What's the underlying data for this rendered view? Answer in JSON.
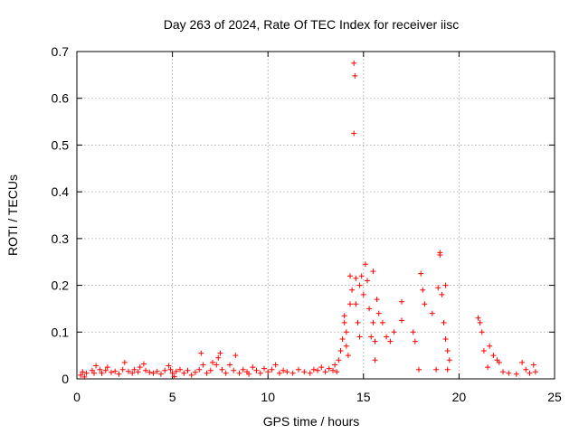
{
  "chart_data": {
    "type": "scatter",
    "title": "Day 263 of 2024, Rate Of TEC Index for receiver iisc",
    "xlabel": "GPS time / hours",
    "ylabel": "ROTI / TECUs",
    "xlim": [
      0,
      25
    ],
    "ylim": [
      0,
      0.7
    ],
    "xticks": [
      "0",
      "5",
      "10",
      "15",
      "20",
      "25"
    ],
    "yticks": [
      "0",
      "0.1",
      "0.2",
      "0.3",
      "0.4",
      "0.5",
      "0.6",
      "0.7"
    ],
    "grid": true,
    "legend": "none",
    "marker": "+",
    "series": [
      {
        "color": "#ff0000",
        "points": [
          [
            0.2,
            0.008
          ],
          [
            0.3,
            0.015
          ],
          [
            0.4,
            0.004
          ],
          [
            0.5,
            0.012
          ],
          [
            0.8,
            0.018
          ],
          [
            0.9,
            0.012
          ],
          [
            1.0,
            0.028
          ],
          [
            1.2,
            0.02
          ],
          [
            1.3,
            0.012
          ],
          [
            1.5,
            0.018
          ],
          [
            1.6,
            0.025
          ],
          [
            1.8,
            0.014
          ],
          [
            2.0,
            0.016
          ],
          [
            2.2,
            0.01
          ],
          [
            2.4,
            0.02
          ],
          [
            2.5,
            0.035
          ],
          [
            2.7,
            0.016
          ],
          [
            2.9,
            0.012
          ],
          [
            3.0,
            0.02
          ],
          [
            3.2,
            0.015
          ],
          [
            3.3,
            0.025
          ],
          [
            3.5,
            0.032
          ],
          [
            3.6,
            0.018
          ],
          [
            3.8,
            0.014
          ],
          [
            4.0,
            0.012
          ],
          [
            4.2,
            0.016
          ],
          [
            4.4,
            0.01
          ],
          [
            4.6,
            0.018
          ],
          [
            4.8,
            0.028
          ],
          [
            4.9,
            0.02
          ],
          [
            5.0,
            0.012
          ],
          [
            5.1,
            0.005
          ],
          [
            5.2,
            0.016
          ],
          [
            5.4,
            0.02
          ],
          [
            5.6,
            0.012
          ],
          [
            5.8,
            0.018
          ],
          [
            6.0,
            0.008
          ],
          [
            6.2,
            0.014
          ],
          [
            6.4,
            0.02
          ],
          [
            6.5,
            0.055
          ],
          [
            6.6,
            0.03
          ],
          [
            6.8,
            0.012
          ],
          [
            7.0,
            0.018
          ],
          [
            7.1,
            0.035
          ],
          [
            7.3,
            0.03
          ],
          [
            7.4,
            0.045
          ],
          [
            7.5,
            0.055
          ],
          [
            7.6,
            0.02
          ],
          [
            7.8,
            0.012
          ],
          [
            8.0,
            0.03
          ],
          [
            8.2,
            0.018
          ],
          [
            8.3,
            0.05
          ],
          [
            8.5,
            0.012
          ],
          [
            8.7,
            0.02
          ],
          [
            8.9,
            0.015
          ],
          [
            9.0,
            0.01
          ],
          [
            9.2,
            0.025
          ],
          [
            9.4,
            0.018
          ],
          [
            9.6,
            0.012
          ],
          [
            9.8,
            0.022
          ],
          [
            10.0,
            0.015
          ],
          [
            10.2,
            0.02
          ],
          [
            10.4,
            0.03
          ],
          [
            10.6,
            0.012
          ],
          [
            10.8,
            0.018
          ],
          [
            11.0,
            0.015
          ],
          [
            11.3,
            0.012
          ],
          [
            11.6,
            0.02
          ],
          [
            11.9,
            0.015
          ],
          [
            12.2,
            0.012
          ],
          [
            12.4,
            0.02
          ],
          [
            12.6,
            0.018
          ],
          [
            12.8,
            0.025
          ],
          [
            13.0,
            0.015
          ],
          [
            13.2,
            0.022
          ],
          [
            13.4,
            0.018
          ],
          [
            13.5,
            0.03
          ],
          [
            13.6,
            0.015
          ],
          [
            13.7,
            0.04
          ],
          [
            13.8,
            0.06
          ],
          [
            13.9,
            0.085
          ],
          [
            14.0,
            0.12
          ],
          [
            14.0,
            0.135
          ],
          [
            14.1,
            0.1
          ],
          [
            14.1,
            0.07
          ],
          [
            14.2,
            0.05
          ],
          [
            14.3,
            0.16
          ],
          [
            14.3,
            0.22
          ],
          [
            14.4,
            0.19
          ],
          [
            14.5,
            0.675
          ],
          [
            14.55,
            0.648
          ],
          [
            14.5,
            0.525
          ],
          [
            14.6,
            0.215
          ],
          [
            14.6,
            0.16
          ],
          [
            14.7,
            0.12
          ],
          [
            14.8,
            0.09
          ],
          [
            14.8,
            0.2
          ],
          [
            14.9,
            0.22
          ],
          [
            15.0,
            0.18
          ],
          [
            15.1,
            0.245
          ],
          [
            15.2,
            0.21
          ],
          [
            15.3,
            0.15
          ],
          [
            15.4,
            0.09
          ],
          [
            15.5,
            0.23
          ],
          [
            15.5,
            0.12
          ],
          [
            15.6,
            0.08
          ],
          [
            15.6,
            0.04
          ],
          [
            15.7,
            0.17
          ],
          [
            15.8,
            0.14
          ],
          [
            16.0,
            0.12
          ],
          [
            16.2,
            0.09
          ],
          [
            16.4,
            0.08
          ],
          [
            16.6,
            0.1
          ],
          [
            17.0,
            0.165
          ],
          [
            17.0,
            0.125
          ],
          [
            17.6,
            0.1
          ],
          [
            17.7,
            0.08
          ],
          [
            17.9,
            0.02
          ],
          [
            18.0,
            0.225
          ],
          [
            18.1,
            0.19
          ],
          [
            18.2,
            0.16
          ],
          [
            18.6,
            0.14
          ],
          [
            18.8,
            0.02
          ],
          [
            18.9,
            0.195
          ],
          [
            19.0,
            0.27
          ],
          [
            19.0,
            0.265
          ],
          [
            19.1,
            0.18
          ],
          [
            19.2,
            0.12
          ],
          [
            19.3,
            0.085
          ],
          [
            19.3,
            0.2
          ],
          [
            19.4,
            0.06
          ],
          [
            19.4,
            0.02
          ],
          [
            19.5,
            0.04
          ],
          [
            21.0,
            0.13
          ],
          [
            21.1,
            0.12
          ],
          [
            21.2,
            0.1
          ],
          [
            21.3,
            0.06
          ],
          [
            21.5,
            0.025
          ],
          [
            21.6,
            0.07
          ],
          [
            21.8,
            0.05
          ],
          [
            22.0,
            0.04
          ],
          [
            22.1,
            0.035
          ],
          [
            22.3,
            0.015
          ],
          [
            22.6,
            0.012
          ],
          [
            23.0,
            0.01
          ],
          [
            23.3,
            0.035
          ],
          [
            23.5,
            0.02
          ],
          [
            23.7,
            0.012
          ],
          [
            23.9,
            0.03
          ],
          [
            24.0,
            0.015
          ]
        ]
      }
    ]
  }
}
